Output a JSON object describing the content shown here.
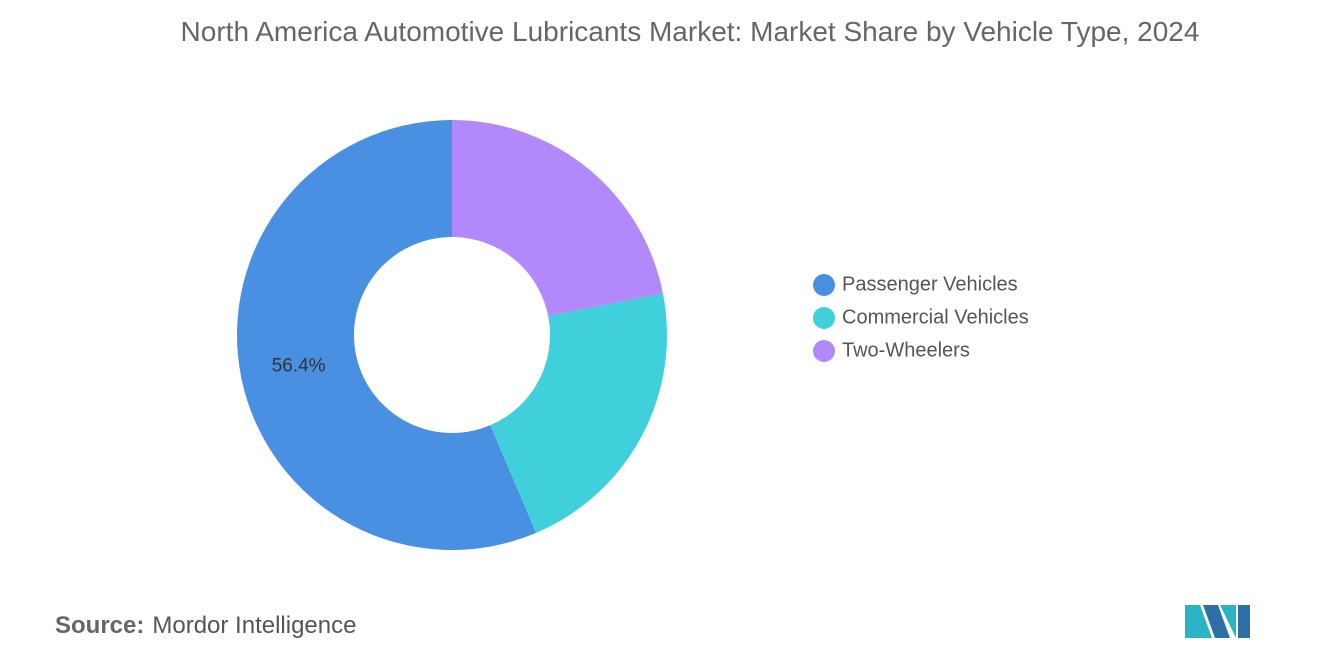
{
  "chart_data": {
    "type": "pie",
    "title": "North America Automotive Lubricants Market: Market Share by Vehicle Type, 2024",
    "categories": [
      "Passenger Vehicles",
      "Commercial Vehicles",
      "Two-Wheelers"
    ],
    "values": [
      56.4,
      21.7,
      21.9
    ],
    "value_labels": [
      "56.4%",
      null,
      null
    ],
    "colors": [
      "#4a90e2",
      "#40d0db",
      "#b388fb"
    ],
    "legend": "right"
  },
  "footer": {
    "source_label": "Source:",
    "source": "Mordor Intelligence"
  }
}
